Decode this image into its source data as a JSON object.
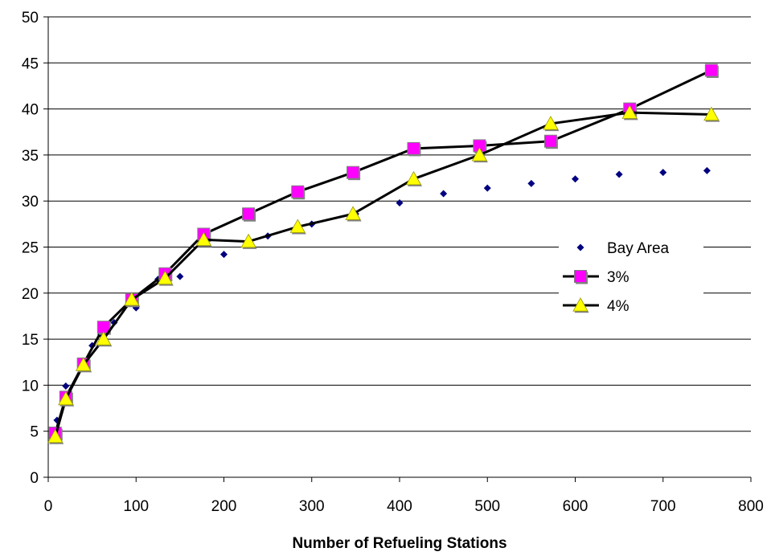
{
  "chart_data": {
    "type": "line",
    "title": "",
    "xlabel": "Number of Refueling Stations",
    "ylabel": "",
    "xlim": [
      0,
      800
    ],
    "ylim": [
      0,
      50
    ],
    "xticks": [
      0,
      100,
      200,
      300,
      400,
      500,
      600,
      700,
      800
    ],
    "yticks": [
      0,
      5,
      10,
      15,
      20,
      25,
      30,
      35,
      40,
      45,
      50
    ],
    "grid": "horizontal",
    "legend_position": "right",
    "series": [
      {
        "name": "Bay Area",
        "style": "markers",
        "marker": "diamond",
        "color": "#000080",
        "points": [
          [
            10,
            6.2
          ],
          [
            20,
            9.9
          ],
          [
            40,
            12.5
          ],
          [
            50,
            14.3
          ],
          [
            60,
            15.5
          ],
          [
            75,
            16.8
          ],
          [
            100,
            18.4
          ],
          [
            125,
            21.5
          ],
          [
            150,
            21.8
          ],
          [
            175,
            25.9
          ],
          [
            200,
            24.2
          ],
          [
            250,
            26.2
          ],
          [
            300,
            27.5
          ],
          [
            350,
            28.6
          ],
          [
            400,
            29.8
          ],
          [
            450,
            30.8
          ],
          [
            500,
            31.4
          ],
          [
            550,
            31.9
          ],
          [
            600,
            32.4
          ],
          [
            650,
            32.9
          ],
          [
            700,
            33.1
          ],
          [
            750,
            33.3
          ]
        ]
      },
      {
        "name": "3%",
        "style": "line-markers",
        "marker": "square",
        "color": "#ff00ff",
        "points": [
          [
            8,
            4.8
          ],
          [
            20,
            8.7
          ],
          [
            40,
            12.3
          ],
          [
            63,
            16.3
          ],
          [
            95,
            19.3
          ],
          [
            133,
            22.1
          ],
          [
            177,
            26.4
          ],
          [
            228,
            28.6
          ],
          [
            284,
            31.0
          ],
          [
            347,
            33.1
          ],
          [
            416,
            35.7
          ],
          [
            491,
            36.0
          ],
          [
            572,
            36.5
          ],
          [
            662,
            40.0
          ],
          [
            755,
            44.2
          ]
        ]
      },
      {
        "name": "4%",
        "style": "line-markers",
        "marker": "triangle",
        "color": "#ffff00",
        "points": [
          [
            8,
            4.4
          ],
          [
            20,
            8.5
          ],
          [
            40,
            12.2
          ],
          [
            63,
            15.0
          ],
          [
            95,
            19.3
          ],
          [
            133,
            21.6
          ],
          [
            177,
            25.8
          ],
          [
            228,
            25.6
          ],
          [
            284,
            27.2
          ],
          [
            347,
            28.6
          ],
          [
            416,
            32.4
          ],
          [
            491,
            35.0
          ],
          [
            572,
            38.4
          ],
          [
            662,
            39.6
          ],
          [
            755,
            39.4
          ]
        ]
      }
    ]
  }
}
